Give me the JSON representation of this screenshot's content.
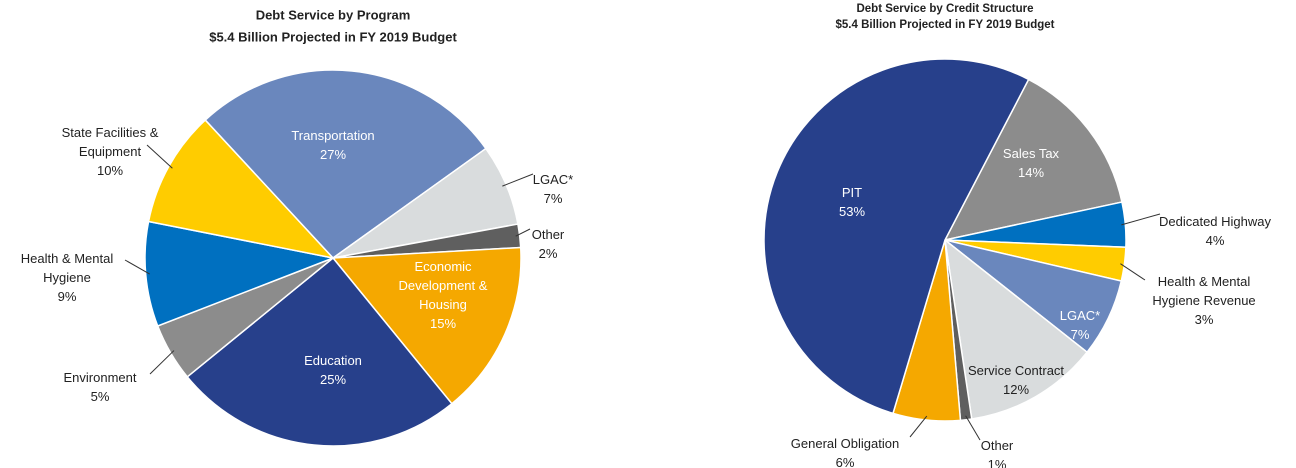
{
  "chart_data": [
    {
      "type": "pie",
      "title": "Debt Service by Program",
      "subtitle": "$5.4 Billion Projected in FY 2019 Budget",
      "categories": [
        "Transportation",
        "LGAC*",
        "Other",
        "Economic Development & Housing",
        "Education",
        "Environment",
        "Health & Mental Hygiene",
        "State Facilities & Equipment"
      ],
      "values": [
        27,
        7,
        2,
        15,
        25,
        5,
        9,
        10
      ],
      "value_labels": [
        "27%",
        "7%",
        "2%",
        "15%",
        "25%",
        "5%",
        "9%",
        "10%"
      ],
      "colors": [
        "#6a87bd",
        "#d9dcdd",
        "#5f5f5f",
        "#f5a800",
        "#27408b",
        "#8c8c8c",
        "#0070c0",
        "#ffcc00"
      ]
    },
    {
      "type": "pie",
      "title": "Debt Service by Credit Structure",
      "subtitle": "$5.4 Billion Projected in FY 2019 Budget",
      "categories": [
        "Sales Tax",
        "Dedicated Highway",
        "Health & Mental Hygiene Revenue",
        "LGAC*",
        "Service Contract",
        "Other",
        "General Obligation",
        "PIT"
      ],
      "values": [
        14,
        4,
        3,
        7,
        12,
        1,
        6,
        53
      ],
      "value_labels": [
        "14%",
        "4%",
        "3%",
        "7%",
        "12%",
        "1%",
        "6%",
        "53%"
      ],
      "colors": [
        "#8c8c8c",
        "#0070c0",
        "#ffcc00",
        "#6a87bd",
        "#d9dcdd",
        "#5f5f5f",
        "#f5a800",
        "#27408b"
      ]
    }
  ]
}
